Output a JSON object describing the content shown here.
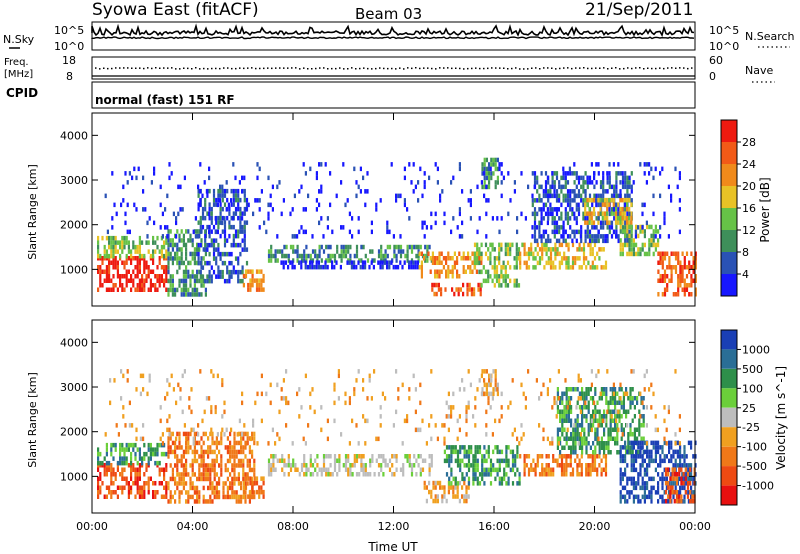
{
  "header": {
    "title": "Syowa East (fitACF)",
    "beam": "Beam 03",
    "date": "21/Sep/2011"
  },
  "top_panels": {
    "nsky_label": "N.Sky",
    "nsearch_label": "N.Search",
    "noise_ticks": [
      "10^5",
      "10^0"
    ],
    "noise_ticks_right": [
      "10^5",
      "10^0"
    ],
    "freq_label_1": "Freq.",
    "freq_label_2": "[MHz]",
    "freq_ticks": [
      "18",
      "8"
    ],
    "nave_label": "Nave",
    "nave_ticks": [
      "60",
      "0"
    ],
    "cpid_label": "CPID",
    "cpid_text": "normal (fast) 151 RF"
  },
  "chart_data": [
    {
      "type": "heatmap",
      "title": "",
      "xlabel": "",
      "ylabel": "Slant Range [km]",
      "xlim": [
        0,
        24
      ],
      "ylim": [
        180,
        4500
      ],
      "x_ticks": [
        "00:00",
        "04:00",
        "08:00",
        "12:00",
        "16:00",
        "20:00",
        "00:00"
      ],
      "y_ticks": [
        1000,
        2000,
        3000,
        4000
      ],
      "colorbar": {
        "label": "Power [dB]",
        "ticks": [
          "4",
          "8",
          "12",
          "16",
          "20",
          "24",
          "28"
        ],
        "colors": [
          "#1717ff",
          "#2a52b5",
          "#3e8f5a",
          "#66c247",
          "#e8c226",
          "#f08a1b",
          "#f25a17",
          "#ee1a10"
        ]
      },
      "regions": [
        {
          "x0": 0.2,
          "x1": 3.0,
          "y0": 550,
          "y1": 1300,
          "level": 7
        },
        {
          "x0": 0.2,
          "x1": 3.0,
          "y0": 1300,
          "y1": 1750,
          "level": 3
        },
        {
          "x0": 3.0,
          "x1": 4.5,
          "y0": 400,
          "y1": 1900,
          "level": 2
        },
        {
          "x0": 4.2,
          "x1": 6.2,
          "y0": 700,
          "y1": 2800,
          "level": 1
        },
        {
          "x0": 6.0,
          "x1": 6.8,
          "y0": 550,
          "y1": 1000,
          "level": 5
        },
        {
          "x0": 7.0,
          "x1": 13.5,
          "y0": 1150,
          "y1": 1550,
          "level": 2
        },
        {
          "x0": 7.5,
          "x1": 13.0,
          "y0": 1000,
          "y1": 1200,
          "level": 0
        },
        {
          "x0": 13.0,
          "x1": 15.5,
          "y0": 800,
          "y1": 1400,
          "level": 5
        },
        {
          "x0": 13.5,
          "x1": 15.5,
          "y0": 400,
          "y1": 700,
          "level": 6
        },
        {
          "x0": 15.5,
          "x1": 16.2,
          "y0": 2800,
          "y1": 3500,
          "level": 2
        },
        {
          "x0": 15.2,
          "x1": 17.0,
          "y0": 600,
          "y1": 1600,
          "level": 3
        },
        {
          "x0": 17.0,
          "x1": 20.5,
          "y0": 1000,
          "y1": 1600,
          "level": 4
        },
        {
          "x0": 17.5,
          "x1": 21.5,
          "y0": 1600,
          "y1": 3200,
          "level": 1
        },
        {
          "x0": 19.5,
          "x1": 21.5,
          "y0": 2000,
          "y1": 2600,
          "level": 4
        },
        {
          "x0": 21.0,
          "x1": 22.5,
          "y0": 1300,
          "y1": 2000,
          "level": 3
        },
        {
          "x0": 22.5,
          "x1": 24.0,
          "y0": 400,
          "y1": 1400,
          "level": 6
        },
        {
          "x0": 0.5,
          "x1": 23.5,
          "y0": 1700,
          "y1": 3400,
          "level": 0
        }
      ]
    },
    {
      "type": "heatmap",
      "title": "",
      "xlabel": "Time UT",
      "ylabel": "Slant Range [km]",
      "xlim": [
        0,
        24
      ],
      "ylim": [
        180,
        4500
      ],
      "x_ticks": [
        "00:00",
        "04:00",
        "08:00",
        "12:00",
        "16:00",
        "20:00",
        "00:00"
      ],
      "y_ticks": [
        1000,
        2000,
        3000,
        4000
      ],
      "colorbar": {
        "label": "Velocity [m s^-1]",
        "ticks": [
          "1000",
          "500",
          "100",
          "25",
          "-25",
          "-100",
          "-500",
          "-1000"
        ],
        "colors": [
          "#1a3fb5",
          "#2a6e96",
          "#2e8f4a",
          "#6bcf3a",
          "#bdbdbd",
          "#f0a020",
          "#f07818",
          "#ee4a12",
          "#e81010"
        ]
      },
      "regions": [
        {
          "x0": 0.2,
          "x1": 3.0,
          "y0": 550,
          "y1": 1300,
          "level": 7
        },
        {
          "x0": 0.2,
          "x1": 3.0,
          "y0": 1300,
          "y1": 1750,
          "level": 2
        },
        {
          "x0": 3.0,
          "x1": 6.5,
          "y0": 400,
          "y1": 2000,
          "level": 6
        },
        {
          "x0": 6.0,
          "x1": 6.8,
          "y0": 550,
          "y1": 1000,
          "level": 6
        },
        {
          "x0": 7.0,
          "x1": 13.5,
          "y0": 1050,
          "y1": 1500,
          "level": 4
        },
        {
          "x0": 13.2,
          "x1": 15.0,
          "y0": 400,
          "y1": 900,
          "level": 5
        },
        {
          "x0": 14.0,
          "x1": 17.0,
          "y0": 800,
          "y1": 1700,
          "level": 2
        },
        {
          "x0": 15.5,
          "x1": 16.2,
          "y0": 2800,
          "y1": 3400,
          "level": 5
        },
        {
          "x0": 17.0,
          "x1": 20.5,
          "y0": 1000,
          "y1": 1500,
          "level": 6
        },
        {
          "x0": 18.5,
          "x1": 22.0,
          "y0": 1500,
          "y1": 3000,
          "level": 2
        },
        {
          "x0": 21.0,
          "x1": 24.0,
          "y0": 400,
          "y1": 1800,
          "level": 0
        },
        {
          "x0": 22.8,
          "x1": 24.0,
          "y0": 400,
          "y1": 1200,
          "level": 7
        },
        {
          "x0": 0.5,
          "x1": 23.5,
          "y0": 1700,
          "y1": 3400,
          "level": 5
        }
      ]
    }
  ]
}
